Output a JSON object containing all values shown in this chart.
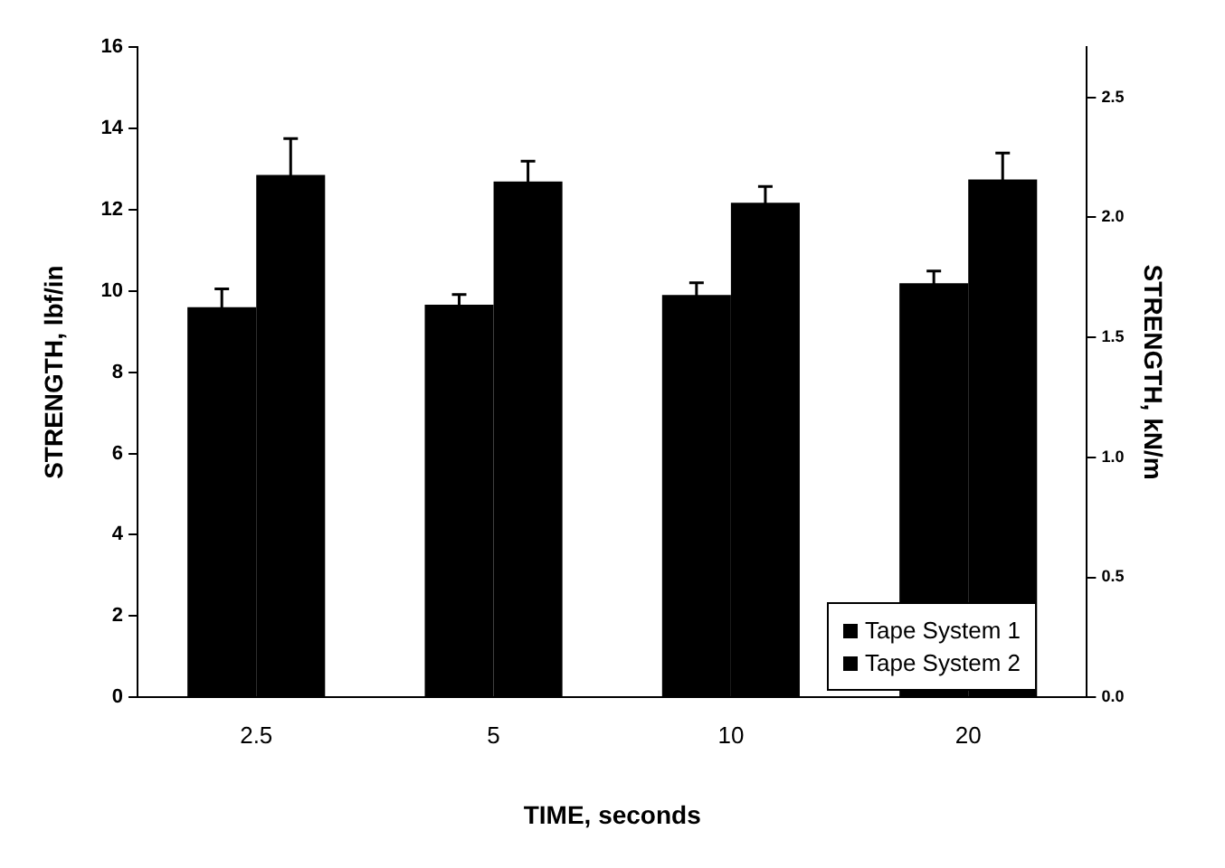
{
  "chart_data": {
    "type": "bar",
    "xlabel": "TIME, seconds",
    "ylabel": "STRENGTH, lbf/in",
    "y2label": "STRENGTH, kN/m",
    "categories": [
      "2.5",
      "5",
      "10",
      "20"
    ],
    "series": [
      {
        "name": "Tape System 1",
        "color": "#000000",
        "values": [
          9.6,
          9.66,
          9.9,
          10.19
        ],
        "errors": [
          0.45,
          0.25,
          0.3,
          0.3
        ]
      },
      {
        "name": "Tape System 2",
        "color": "#000000",
        "values": [
          12.85,
          12.69,
          12.17,
          12.74
        ],
        "errors": [
          0.9,
          0.5,
          0.4,
          0.65
        ]
      }
    ],
    "ylim": [
      0,
      16
    ],
    "yticks": [
      0,
      2,
      4,
      6,
      8,
      10,
      12,
      14,
      16
    ],
    "y2lim": [
      0,
      2.71
    ],
    "y2ticks": [
      {
        "value": 0,
        "label": "0.0"
      },
      0.5,
      {
        "value": 1,
        "label": "1.0"
      },
      1.5,
      {
        "value": 2,
        "label": "2.0"
      },
      2.5
    ],
    "grid": false,
    "legend": "bottom right"
  }
}
